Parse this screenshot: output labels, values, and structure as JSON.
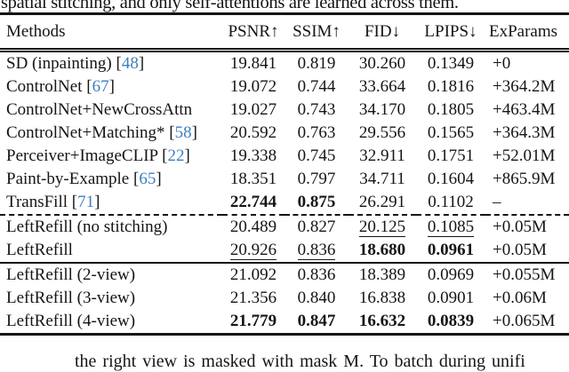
{
  "page": {
    "top_partial_text": "spatial stitching, and only self-attentions are learned across them.",
    "bottom_partial_text": "the right view is masked with mask M. To batch during unifi"
  },
  "colors": {
    "citation_blue": "#3d7ebf",
    "text": "#151515"
  },
  "table": {
    "columns": [
      "Methods",
      "PSNR↑",
      "SSIM↑",
      "FID↓",
      "LPIPS↓",
      "ExParams"
    ],
    "rows": [
      {
        "method": "SD (inpainting)",
        "cite": "48",
        "cells": [
          {
            "t": "19.841"
          },
          {
            "t": "0.819"
          },
          {
            "t": "30.260"
          },
          {
            "t": "0.1349"
          },
          {
            "t": "+0"
          }
        ]
      },
      {
        "method": "ControlNet",
        "cite": "67",
        "cells": [
          {
            "t": "19.072"
          },
          {
            "t": "0.744"
          },
          {
            "t": "33.664"
          },
          {
            "t": "0.1816"
          },
          {
            "t": "+364.2M"
          }
        ]
      },
      {
        "method": "ControlNet+NewCrossAttn",
        "cite": null,
        "cells": [
          {
            "t": "19.027"
          },
          {
            "t": "0.743"
          },
          {
            "t": "34.170"
          },
          {
            "t": "0.1805"
          },
          {
            "t": "+463.4M"
          }
        ]
      },
      {
        "method": "ControlNet+Matching*",
        "cite": "58",
        "cells": [
          {
            "t": "20.592"
          },
          {
            "t": "0.763"
          },
          {
            "t": "29.556"
          },
          {
            "t": "0.1565"
          },
          {
            "t": "+364.3M"
          }
        ]
      },
      {
        "method": "Perceiver+ImageCLIP",
        "cite": "22",
        "cells": [
          {
            "t": "19.338"
          },
          {
            "t": "0.745"
          },
          {
            "t": "32.911"
          },
          {
            "t": "0.1751"
          },
          {
            "t": "+52.01M"
          }
        ]
      },
      {
        "method": "Paint-by-Example",
        "cite": "65",
        "cells": [
          {
            "t": "18.351"
          },
          {
            "t": "0.797"
          },
          {
            "t": "34.711"
          },
          {
            "t": "0.1604"
          },
          {
            "t": "+865.9M"
          }
        ]
      },
      {
        "method": "TransFill",
        "cite": "71",
        "sep_after": "dashed",
        "cells": [
          {
            "t": "22.744",
            "b": true
          },
          {
            "t": "0.875",
            "b": true
          },
          {
            "t": "26.291"
          },
          {
            "t": "0.1102"
          },
          {
            "t": "–"
          }
        ]
      },
      {
        "method": "LeftRefill (no stitching)",
        "cite": null,
        "cells": [
          {
            "t": "20.489"
          },
          {
            "t": "0.827"
          },
          {
            "t": "20.125",
            "u": true
          },
          {
            "t": "0.1085",
            "u": true
          },
          {
            "t": "+0.05M"
          }
        ]
      },
      {
        "method": "LeftRefill",
        "cite": null,
        "sep_after": "solid",
        "cells": [
          {
            "t": "20.926",
            "u": true
          },
          {
            "t": "0.836",
            "u": true
          },
          {
            "t": "18.680",
            "b": true
          },
          {
            "t": "0.0961",
            "b": true
          },
          {
            "t": "+0.05M"
          }
        ]
      },
      {
        "method": "LeftRefill (2-view)",
        "cite": null,
        "cells": [
          {
            "t": "21.092"
          },
          {
            "t": "0.836"
          },
          {
            "t": "18.389"
          },
          {
            "t": "0.0969"
          },
          {
            "t": "+0.055M"
          }
        ]
      },
      {
        "method": "LeftRefill (3-view)",
        "cite": null,
        "cells": [
          {
            "t": "21.356"
          },
          {
            "t": "0.840"
          },
          {
            "t": "16.838"
          },
          {
            "t": "0.0901"
          },
          {
            "t": "+0.06M"
          }
        ]
      },
      {
        "method": "LeftRefill (4-view)",
        "cite": null,
        "cells": [
          {
            "t": "21.779",
            "b": true
          },
          {
            "t": "0.847",
            "b": true
          },
          {
            "t": "16.632",
            "b": true
          },
          {
            "t": "0.0839",
            "b": true
          },
          {
            "t": "+0.065M"
          }
        ]
      }
    ]
  }
}
